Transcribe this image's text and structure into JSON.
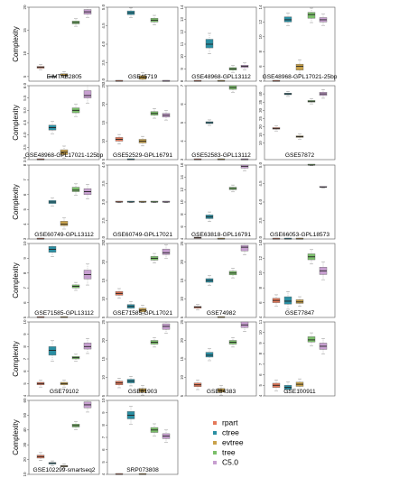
{
  "chart_data": {
    "type": "boxplot",
    "ylabel": "Complexity",
    "legend": {
      "position": "bottom-right",
      "entries": [
        {
          "name": "rpart",
          "color": "#e4795a"
        },
        {
          "name": "ctree",
          "color": "#2a8fa3"
        },
        {
          "name": "evtree",
          "color": "#c9a24a"
        },
        {
          "name": "tree",
          "color": "#7bbf6a"
        },
        {
          "name": "C5.0",
          "color": "#c79fd0"
        }
      ]
    },
    "panels": [
      {
        "title": "E-MTAB2805",
        "ylim": [
          4,
          20
        ],
        "ticks": [
          5,
          10,
          15,
          20
        ],
        "ylabel": "Complexity",
        "boxes": [
          [
            6.8,
            7.0,
            7.2
          ],
          [
            4.9,
            5.0,
            5.1
          ],
          [
            5.1,
            5.3,
            5.6
          ],
          [
            16.4,
            16.7,
            17.0
          ],
          [
            18.5,
            19.0,
            19.5
          ]
        ]
      },
      {
        "title": "GSE45719",
        "ylim": [
          3.0,
          5.0
        ],
        "ticks": [
          3.0,
          3.5,
          4.0,
          4.5,
          5.0
        ],
        "ylabel": "",
        "boxes": [
          [
            3.0,
            3.0,
            3.0
          ],
          [
            4.8,
            4.85,
            4.9
          ],
          [
            3.05,
            3.1,
            3.15
          ],
          [
            4.6,
            4.65,
            4.7
          ],
          [
            3.0,
            3.0,
            3.0
          ]
        ]
      },
      {
        "title": "GSE48968-GPL13112",
        "ylim": [
          8,
          14
        ],
        "ticks": [
          8,
          9,
          10,
          11,
          12,
          13,
          14
        ],
        "ylabel": "",
        "boxes": [
          [
            8.0,
            8.0,
            8.0
          ],
          [
            10.7,
            11.0,
            11.4
          ],
          [
            8.0,
            8.0,
            8.0
          ],
          [
            8.9,
            9.0,
            9.1
          ],
          [
            9.1,
            9.2,
            9.3
          ]
        ]
      },
      {
        "title": "GSE48968-GPL17021-25bp",
        "ylim": [
          4,
          14
        ],
        "ticks": [
          4,
          6,
          8,
          10,
          12,
          14
        ],
        "ylabel": "",
        "boxes": [
          [
            4.0,
            4.0,
            4.0
          ],
          [
            12.0,
            12.3,
            12.7
          ],
          [
            5.5,
            6.0,
            6.3
          ],
          [
            12.5,
            13.0,
            13.3
          ],
          [
            12.0,
            12.3,
            12.6
          ]
        ]
      },
      {
        "title": "GSE48968-GPL17021-125bp",
        "ylim": [
          3.0,
          6.0
        ],
        "ticks": [
          3.0,
          3.5,
          4.0,
          4.5,
          5.0,
          5.5,
          6.0
        ],
        "ylabel": "Complexity",
        "boxes": [
          [
            3.0,
            3.0,
            3.0
          ],
          [
            4.2,
            4.3,
            4.4
          ],
          [
            3.2,
            3.3,
            3.4
          ],
          [
            4.9,
            5.0,
            5.1
          ],
          [
            5.5,
            5.6,
            5.8
          ]
        ]
      },
      {
        "title": "GSE52529-GPL16791",
        "ylim": [
          5,
          25
        ],
        "ticks": [
          5,
          10,
          15,
          20,
          25
        ],
        "ylabel": "",
        "boxes": [
          [
            10.0,
            10.5,
            11.0
          ],
          [
            5.0,
            5.0,
            5.0
          ],
          [
            9.5,
            10.0,
            10.5
          ],
          [
            17.0,
            17.5,
            18.0
          ],
          [
            16.5,
            17.0,
            17.5
          ]
        ]
      },
      {
        "title": "GSE52583-GPL13112",
        "ylim": [
          3.0,
          7.0
        ],
        "ticks": [
          3.0,
          4.0,
          5.0,
          6.0,
          7.0
        ],
        "ylabel": "",
        "boxes": [
          [
            3.0,
            3.0,
            3.0
          ],
          [
            4.95,
            5.0,
            5.05
          ],
          [
            3.0,
            3.0,
            3.0
          ],
          [
            6.8,
            6.9,
            7.0
          ],
          [
            3.0,
            3.0,
            3.0
          ]
        ]
      },
      {
        "title": "GSE57872",
        "ylim": [
          0,
          45
        ],
        "ticks": [
          10,
          15,
          20,
          25,
          30,
          35,
          40
        ],
        "ylabel": "",
        "boxes": [
          [
            18.5,
            19.0,
            19.5
          ],
          [
            39.5,
            40.0,
            40.5
          ],
          [
            13.5,
            14.0,
            14.5
          ],
          [
            35.0,
            35.5,
            36.0
          ],
          [
            39.0,
            40.0,
            41.0
          ]
        ]
      },
      {
        "title": "GSE60749-GPL13112",
        "ylim": [
          3,
          8
        ],
        "ticks": [
          3,
          4,
          5,
          6,
          7,
          8
        ],
        "ylabel": "Complexity",
        "boxes": [
          [
            3.0,
            3.0,
            3.0
          ],
          [
            5.4,
            5.5,
            5.6
          ],
          [
            3.9,
            4.0,
            4.2
          ],
          [
            6.2,
            6.3,
            6.5
          ],
          [
            6.0,
            6.2,
            6.4
          ]
        ]
      },
      {
        "title": "GSE60749-GPL17021",
        "ylim": [
          2.0,
          4.0
        ],
        "ticks": [
          2.0,
          2.5,
          3.0,
          3.5,
          4.0
        ],
        "ylabel": "",
        "boxes": [
          [
            3.0,
            3.0,
            3.0
          ],
          [
            3.0,
            3.0,
            3.0
          ],
          [
            3.0,
            3.0,
            3.0
          ],
          [
            3.0,
            3.0,
            3.0
          ],
          [
            3.0,
            3.0,
            3.0
          ]
        ]
      },
      {
        "title": "GSE63818-GPL16791",
        "ylim": [
          4,
          16
        ],
        "ticks": [
          4,
          6,
          8,
          10,
          12,
          14,
          16
        ],
        "ylabel": "",
        "boxes": [
          [
            4.1,
            4.2,
            4.3
          ],
          [
            7.3,
            7.6,
            7.9
          ],
          [
            4.0,
            4.0,
            4.0
          ],
          [
            12.0,
            12.2,
            12.4
          ],
          [
            15.5,
            15.8,
            16.0
          ]
        ]
      },
      {
        "title": "GSE66053-GPL18573",
        "ylim": [
          3.0,
          5.0
        ],
        "ticks": [
          3.0,
          3.5,
          4.0,
          4.5,
          5.0
        ],
        "ylabel": "",
        "boxes": [
          [
            3.0,
            3.0,
            3.0
          ],
          [
            3.0,
            3.0,
            3.0
          ],
          [
            3.0,
            3.0,
            3.0
          ],
          [
            5.0,
            5.0,
            5.0
          ],
          [
            4.4,
            4.4,
            4.4
          ]
        ]
      },
      {
        "title": "GSE71585-GPL13112",
        "ylim": [
          5,
          10
        ],
        "ticks": [
          5,
          6,
          7,
          8,
          9,
          10
        ],
        "ylabel": "Complexity",
        "boxes": [
          [
            5.0,
            5.0,
            5.0
          ],
          [
            9.4,
            9.6,
            9.8
          ],
          [
            5.0,
            5.0,
            5.0
          ],
          [
            7.0,
            7.1,
            7.2
          ],
          [
            7.6,
            7.9,
            8.2
          ]
        ]
      },
      {
        "title": "GSE71585-GPL17021",
        "ylim": [
          5,
          25
        ],
        "ticks": [
          5,
          10,
          15,
          20,
          25
        ],
        "ylabel": "",
        "boxes": [
          [
            11.0,
            11.5,
            12.0
          ],
          [
            7.5,
            8.0,
            8.5
          ],
          [
            6.5,
            7.0,
            7.5
          ],
          [
            20.5,
            21.0,
            21.5
          ],
          [
            22.0,
            22.5,
            23.5
          ]
        ]
      },
      {
        "title": "GSE74982",
        "ylim": [
          5,
          25
        ],
        "ticks": [
          5,
          10,
          15,
          20,
          25
        ],
        "ylabel": "",
        "boxes": [
          [
            7.5,
            7.8,
            8.0
          ],
          [
            14.5,
            15.0,
            15.5
          ],
          [
            5.0,
            5.0,
            5.0
          ],
          [
            16.5,
            17.0,
            17.5
          ],
          [
            23.0,
            24.0,
            24.5
          ]
        ]
      },
      {
        "title": "GSE77847",
        "ylim": [
          4,
          14
        ],
        "ticks": [
          4,
          6,
          8,
          10,
          12,
          14
        ],
        "ylabel": "",
        "boxes": [
          [
            6.0,
            6.3,
            6.6
          ],
          [
            5.8,
            6.2,
            6.8
          ],
          [
            5.9,
            6.1,
            6.4
          ],
          [
            11.8,
            12.2,
            12.6
          ],
          [
            9.8,
            10.3,
            10.8
          ]
        ]
      },
      {
        "title": "GSE79102",
        "ylim": [
          4,
          10
        ],
        "ticks": [
          4,
          5,
          6,
          7,
          8,
          9,
          10
        ],
        "ylabel": "Complexity",
        "boxes": [
          [
            4.9,
            5.0,
            5.1
          ],
          [
            7.3,
            7.7,
            8.0
          ],
          [
            4.9,
            5.0,
            5.1
          ],
          [
            7.0,
            7.1,
            7.2
          ],
          [
            7.8,
            8.0,
            8.3
          ]
        ]
      },
      {
        "title": "GSE81903",
        "ylim": [
          5,
          25
        ],
        "ticks": [
          5,
          10,
          15,
          20,
          25
        ],
        "ylabel": "",
        "boxes": [
          [
            8.0,
            8.5,
            9.0
          ],
          [
            8.5,
            9.0,
            9.5
          ],
          [
            6.0,
            6.5,
            7.0
          ],
          [
            19.0,
            19.5,
            20.0
          ],
          [
            23.0,
            23.8,
            24.5
          ]
        ]
      },
      {
        "title": "GSE84383",
        "ylim": [
          5,
          25
        ],
        "ticks": [
          5,
          10,
          15,
          20,
          25
        ],
        "ylabel": "",
        "boxes": [
          [
            7.5,
            8.0,
            8.5
          ],
          [
            15.5,
            16.0,
            16.8
          ],
          [
            6.0,
            6.5,
            7.0
          ],
          [
            19.0,
            19.5,
            20.0
          ],
          [
            23.5,
            24.2,
            25.0
          ]
        ]
      },
      {
        "title": "GSE100911",
        "ylim": [
          4,
          11
        ],
        "ticks": [
          4,
          5,
          6,
          7,
          8,
          9,
          10,
          11
        ],
        "ylabel": "",
        "boxes": [
          [
            4.8,
            5.0,
            5.2
          ],
          [
            4.6,
            4.8,
            5.0
          ],
          [
            4.9,
            5.1,
            5.3
          ],
          [
            9.1,
            9.3,
            9.6
          ],
          [
            8.4,
            8.7,
            9.0
          ]
        ]
      },
      {
        "title": "GSE102299-smartseq2",
        "ylim": [
          10,
          60
        ],
        "ticks": [
          10,
          20,
          30,
          40,
          50,
          60
        ],
        "ylabel": "Complexity",
        "boxes": [
          [
            21.0,
            22.0,
            23.0
          ],
          [
            17.0,
            17.5,
            18.0
          ],
          [
            15.0,
            15.5,
            16.0
          ],
          [
            42.0,
            43.0,
            44.0
          ],
          [
            55.0,
            57.0,
            59.0
          ]
        ]
      },
      {
        "title": "SRP073808",
        "ylim": [
          4,
          10
        ],
        "ticks": [
          4,
          5,
          6,
          7,
          8,
          9,
          10
        ],
        "ylabel": "",
        "boxes": [
          [
            4.0,
            4.0,
            4.0
          ],
          [
            8.5,
            8.8,
            9.1
          ],
          [
            4.0,
            4.0,
            4.0
          ],
          [
            7.4,
            7.6,
            7.8
          ],
          [
            6.9,
            7.1,
            7.3
          ]
        ]
      }
    ]
  }
}
